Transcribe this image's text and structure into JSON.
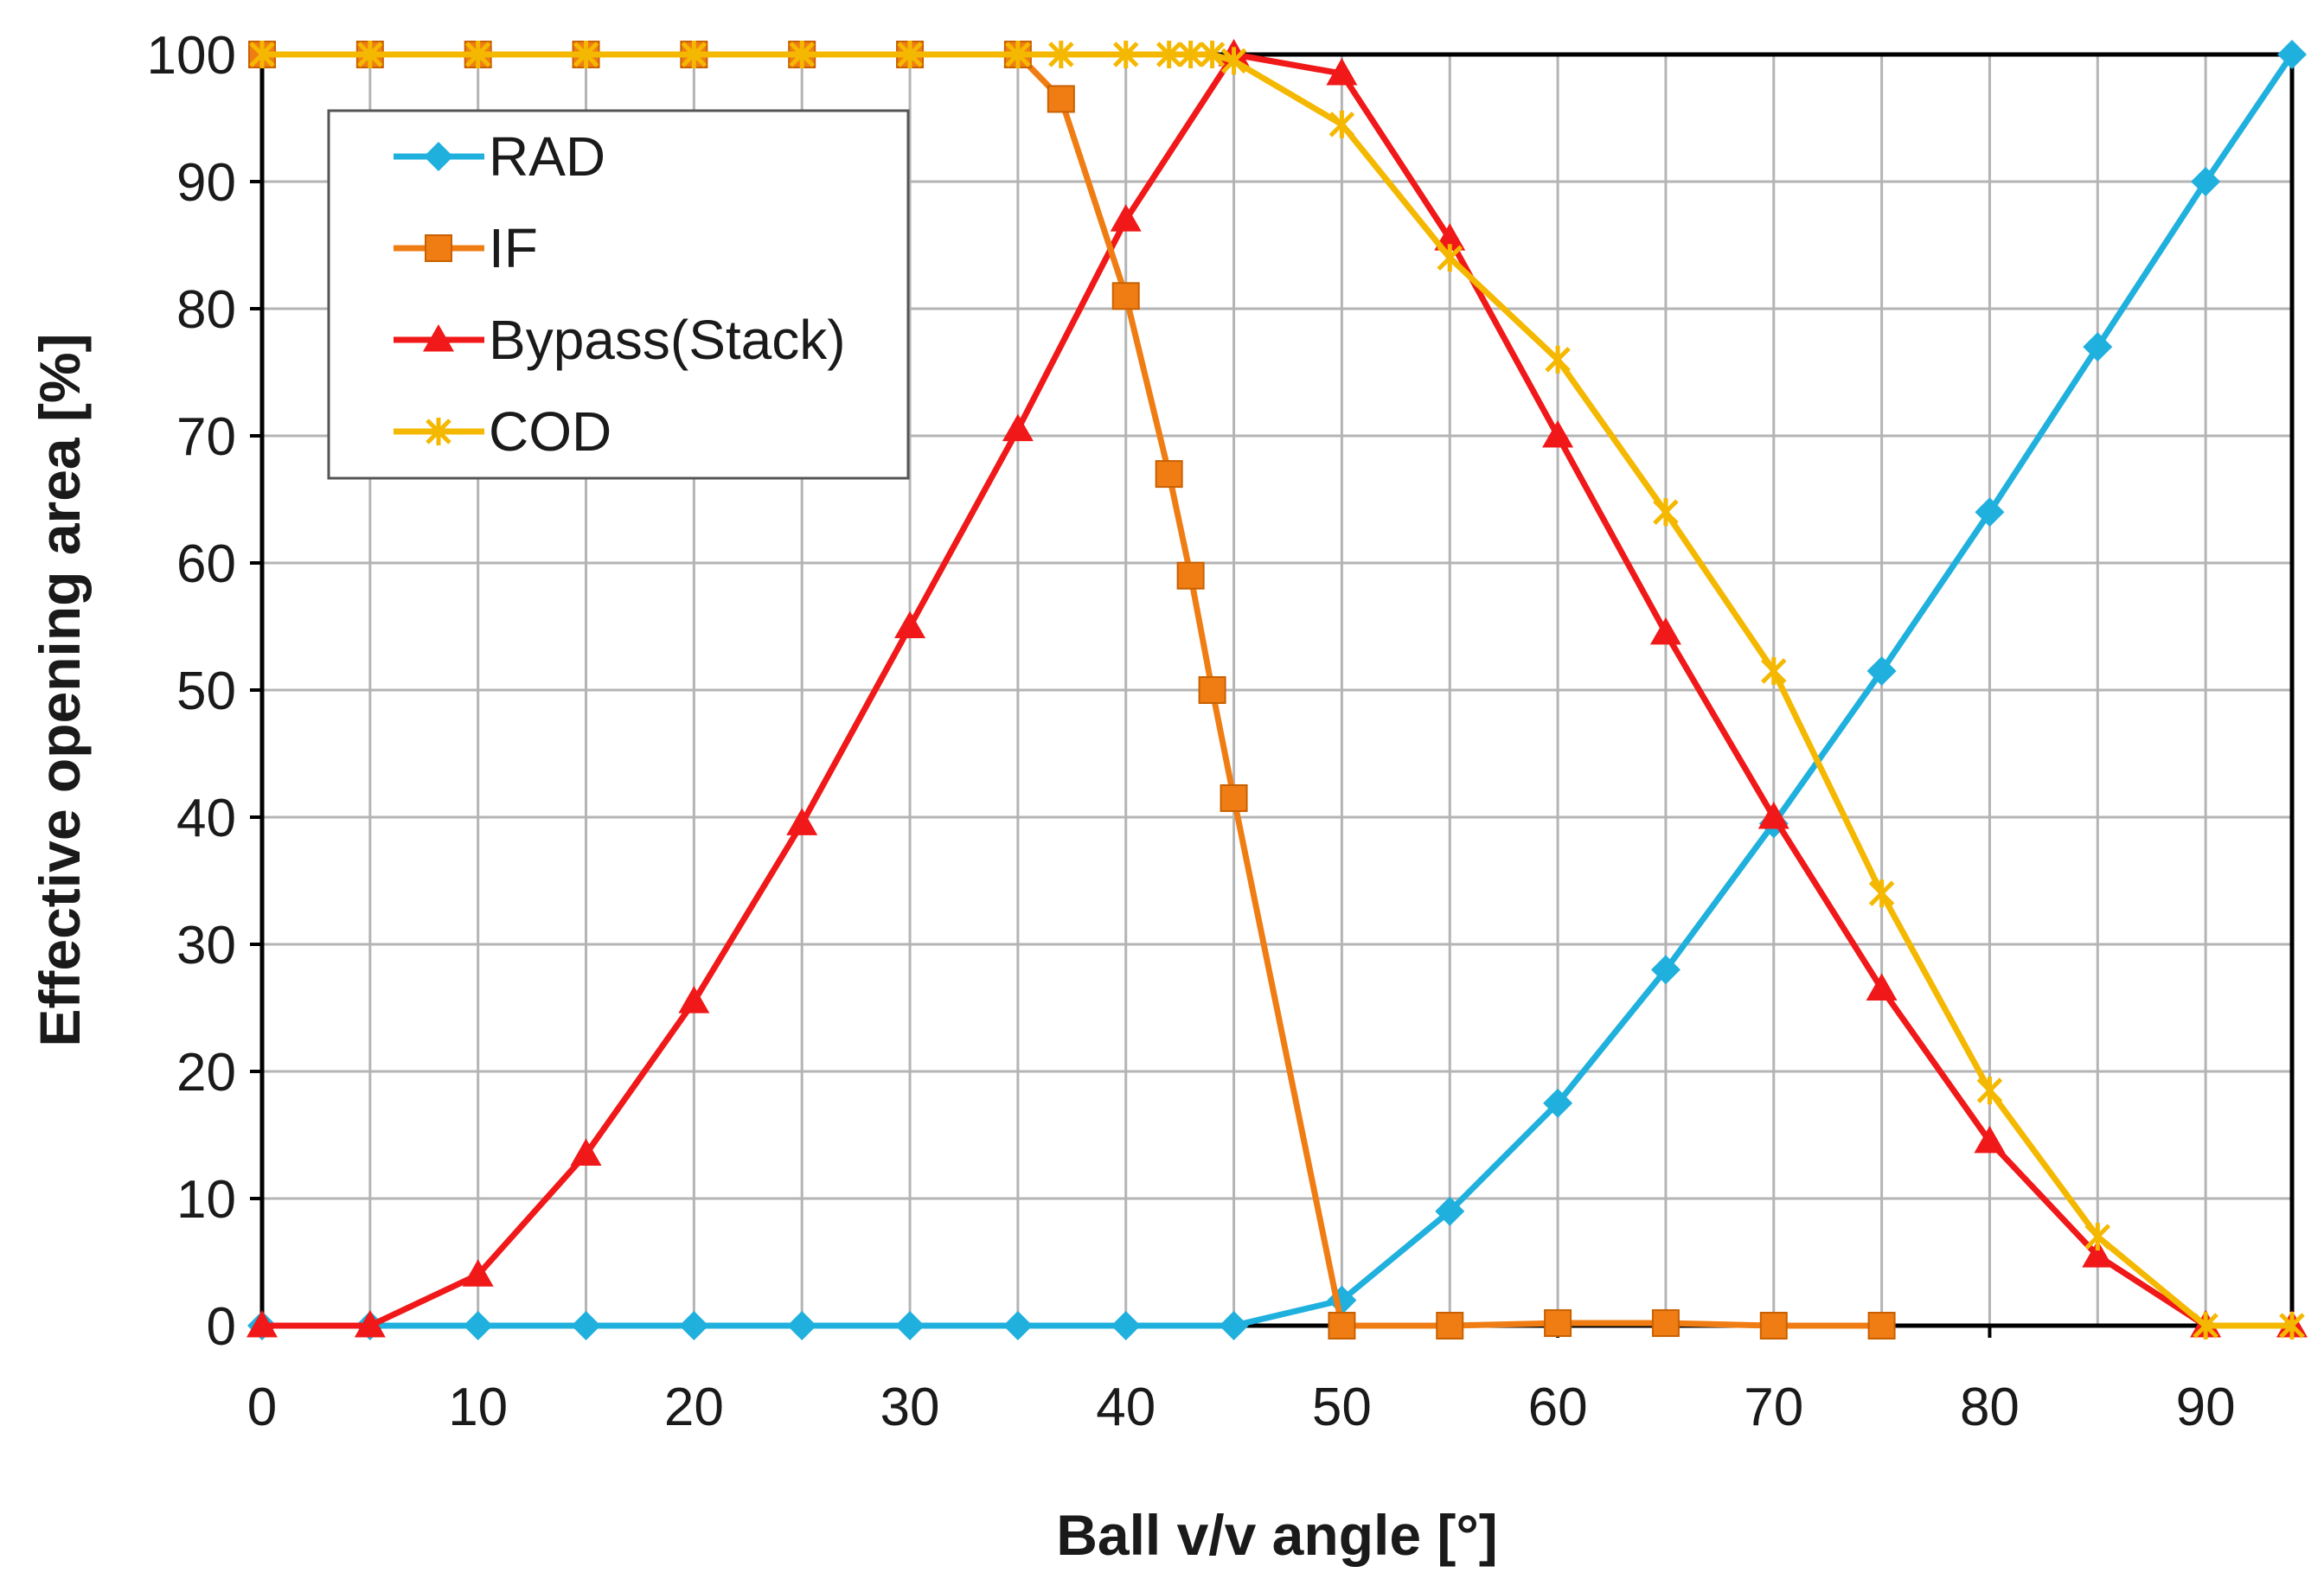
{
  "chart_data": {
    "type": "line",
    "xlabel": "Ball v/v angle [°]",
    "ylabel": "Effective opening area  [%]",
    "xlim": [
      0,
      94
    ],
    "ylim": [
      0,
      100
    ],
    "x_ticks": [
      0,
      10,
      20,
      30,
      40,
      50,
      60,
      70,
      80,
      90
    ],
    "y_ticks": [
      0,
      10,
      20,
      30,
      40,
      50,
      60,
      70,
      80,
      90,
      100
    ],
    "grid": true,
    "legend": "top-left",
    "series": [
      {
        "name": "RAD",
        "color": "#1FB0DE",
        "marker": "diamond",
        "x": [
          0,
          5,
          10,
          15,
          20,
          25,
          30,
          35,
          40,
          45,
          50,
          55,
          60,
          65,
          70,
          75,
          80,
          85,
          90,
          94
        ],
        "y": [
          0,
          0,
          0,
          0,
          0,
          0,
          0,
          0,
          0,
          0,
          2,
          9,
          17.5,
          28,
          39.5,
          51.5,
          64,
          77,
          90,
          100
        ]
      },
      {
        "name": "IF",
        "color": "#F07D14",
        "marker": "square",
        "x": [
          0,
          5,
          10,
          15,
          20,
          25,
          30,
          35,
          37,
          40,
          42,
          43,
          44,
          45,
          50,
          55,
          60,
          65,
          70,
          75
        ],
        "y": [
          100,
          100,
          100,
          100,
          100,
          100,
          100,
          100,
          96.5,
          81,
          67,
          59,
          50,
          41.5,
          0,
          0,
          0.2,
          0.2,
          0,
          0
        ]
      },
      {
        "name": "Bypass(Stack)",
        "color": "#F01818",
        "marker": "triangle",
        "x": [
          0,
          5,
          10,
          15,
          20,
          25,
          30,
          35,
          40,
          45,
          50,
          55,
          60,
          65,
          70,
          75,
          80,
          85,
          90,
          94
        ],
        "y": [
          0,
          0,
          4,
          13.5,
          25.5,
          39.5,
          55,
          70.5,
          87,
          100,
          98.5,
          85.5,
          70,
          54.5,
          40,
          26.5,
          14.5,
          5.5,
          0,
          0
        ]
      },
      {
        "name": "COD",
        "color": "#F5B800",
        "marker": "star",
        "x": [
          0,
          5,
          10,
          15,
          20,
          25,
          30,
          35,
          37,
          40,
          42,
          43,
          44,
          45,
          50,
          55,
          60,
          65,
          70,
          75,
          80,
          85,
          90,
          94
        ],
        "y": [
          100,
          100,
          100,
          100,
          100,
          100,
          100,
          100,
          100,
          100,
          100,
          100,
          100,
          99.5,
          94.5,
          84,
          76,
          64,
          51.5,
          34,
          18.5,
          7,
          0,
          0
        ]
      }
    ]
  }
}
